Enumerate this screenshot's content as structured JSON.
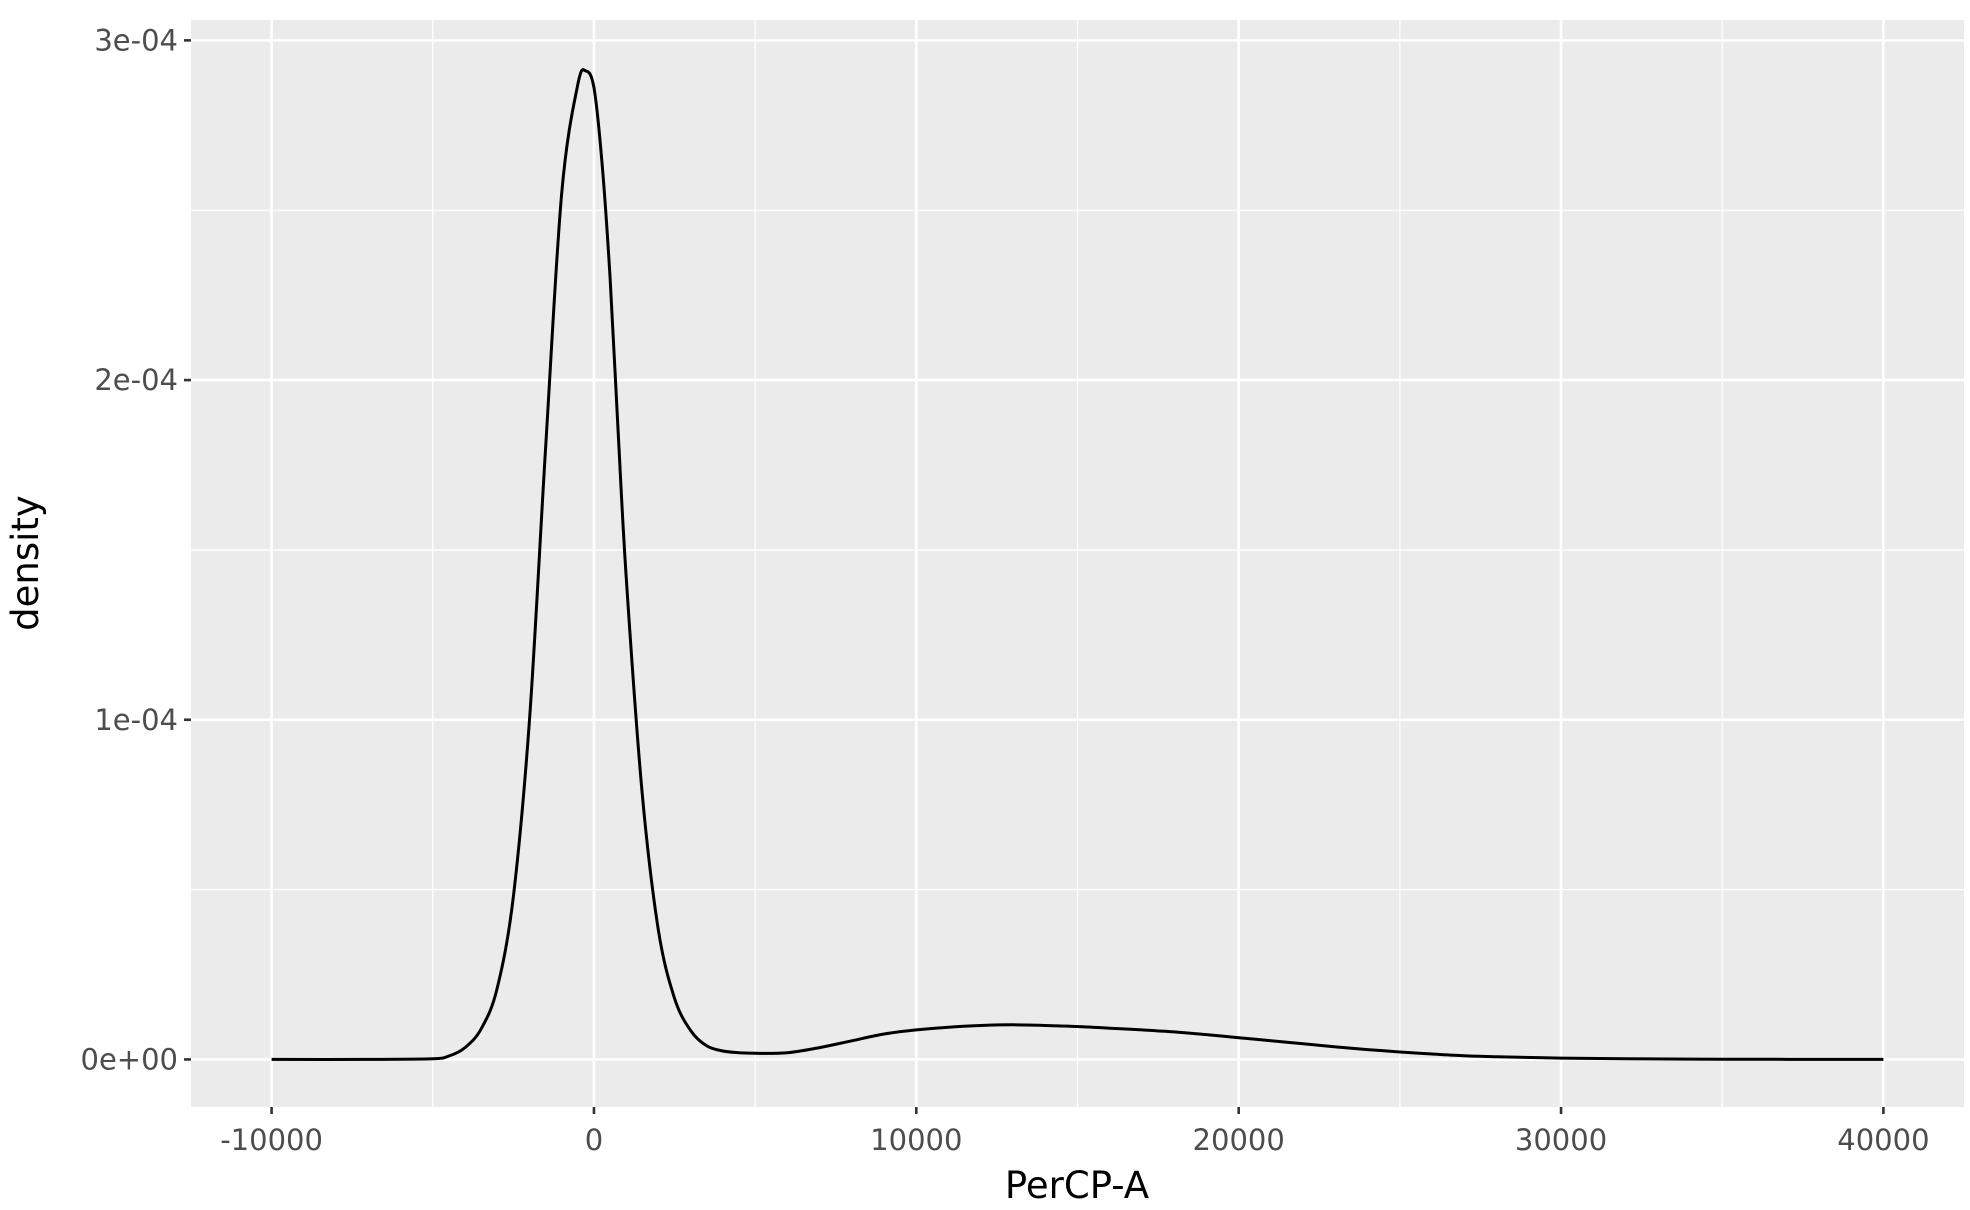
{
  "chart_data": {
    "type": "line",
    "title": "",
    "xlabel": "PerCP-A",
    "ylabel": "density",
    "xlim": [
      -12500,
      42500
    ],
    "ylim": [
      -1.4e-05,
      0.000306
    ],
    "x_ticks": [
      {
        "value": -10000,
        "label": "-10000"
      },
      {
        "value": 0,
        "label": "0"
      },
      {
        "value": 10000,
        "label": "10000"
      },
      {
        "value": 20000,
        "label": "20000"
      },
      {
        "value": 30000,
        "label": "30000"
      },
      {
        "value": 40000,
        "label": "40000"
      }
    ],
    "x_minor_ticks": [
      -5000,
      5000,
      15000,
      25000,
      35000
    ],
    "y_ticks": [
      {
        "value": 0,
        "label": "0e+00"
      },
      {
        "value": 0.0001,
        "label": "1e-04"
      },
      {
        "value": 0.0002,
        "label": "2e-04"
      },
      {
        "value": 0.0003,
        "label": "3e-04"
      }
    ],
    "y_minor_ticks": [
      5e-05,
      0.00015,
      0.00025
    ],
    "grid": true,
    "legend": "none",
    "colors": {
      "panel_background": "#ebebeb",
      "grid_line": "#ffffff",
      "series_line": "#000000",
      "tick_text": "#4d4d4d",
      "axis_title_text": "#000000"
    },
    "series": [
      {
        "x": [
          -10000,
          -7000,
          -5000,
          -4500,
          -4000,
          -3500,
          -3000,
          -2500,
          -2000,
          -1500,
          -1000,
          -500,
          -250,
          0,
          250,
          500,
          750,
          1000,
          1500,
          2000,
          2500,
          3000,
          3500,
          4000,
          4500,
          5000,
          6000,
          7000,
          8000,
          9000,
          10000,
          11000,
          12000,
          13000,
          14000,
          15000,
          16000,
          17000,
          18000,
          19000,
          20000,
          21000,
          22000,
          23000,
          24000,
          25000,
          26000,
          27000,
          28000,
          30000,
          32000,
          34000,
          36000,
          38000,
          40000
        ],
        "y": [
          0,
          0,
          2e-07,
          1e-06,
          3.5e-06,
          9e-06,
          2.1e-05,
          4.8e-05,
          0.0001,
          0.00018,
          0.000255,
          0.000287,
          0.000291,
          0.000286,
          0.000264,
          0.00023,
          0.000185,
          0.000142,
          7.8e-05,
          3.8e-05,
          1.8e-05,
          8.5e-06,
          4e-06,
          2.5e-06,
          2e-06,
          1.8e-06,
          2e-06,
          3.5e-06,
          5.5e-06,
          7.5e-06,
          8.7e-06,
          9.5e-06,
          1e-05,
          1.02e-05,
          1e-05,
          9.7e-06,
          9.2e-06,
          8.7e-06,
          8.1e-06,
          7.3e-06,
          6.4e-06,
          5.5e-06,
          4.6e-06,
          3.7e-06,
          2.9e-06,
          2.2e-06,
          1.6e-06,
          1.1e-06,
          8e-07,
          4e-07,
          2e-07,
          1e-07,
          5e-08,
          2e-08,
          0
        ]
      }
    ]
  }
}
